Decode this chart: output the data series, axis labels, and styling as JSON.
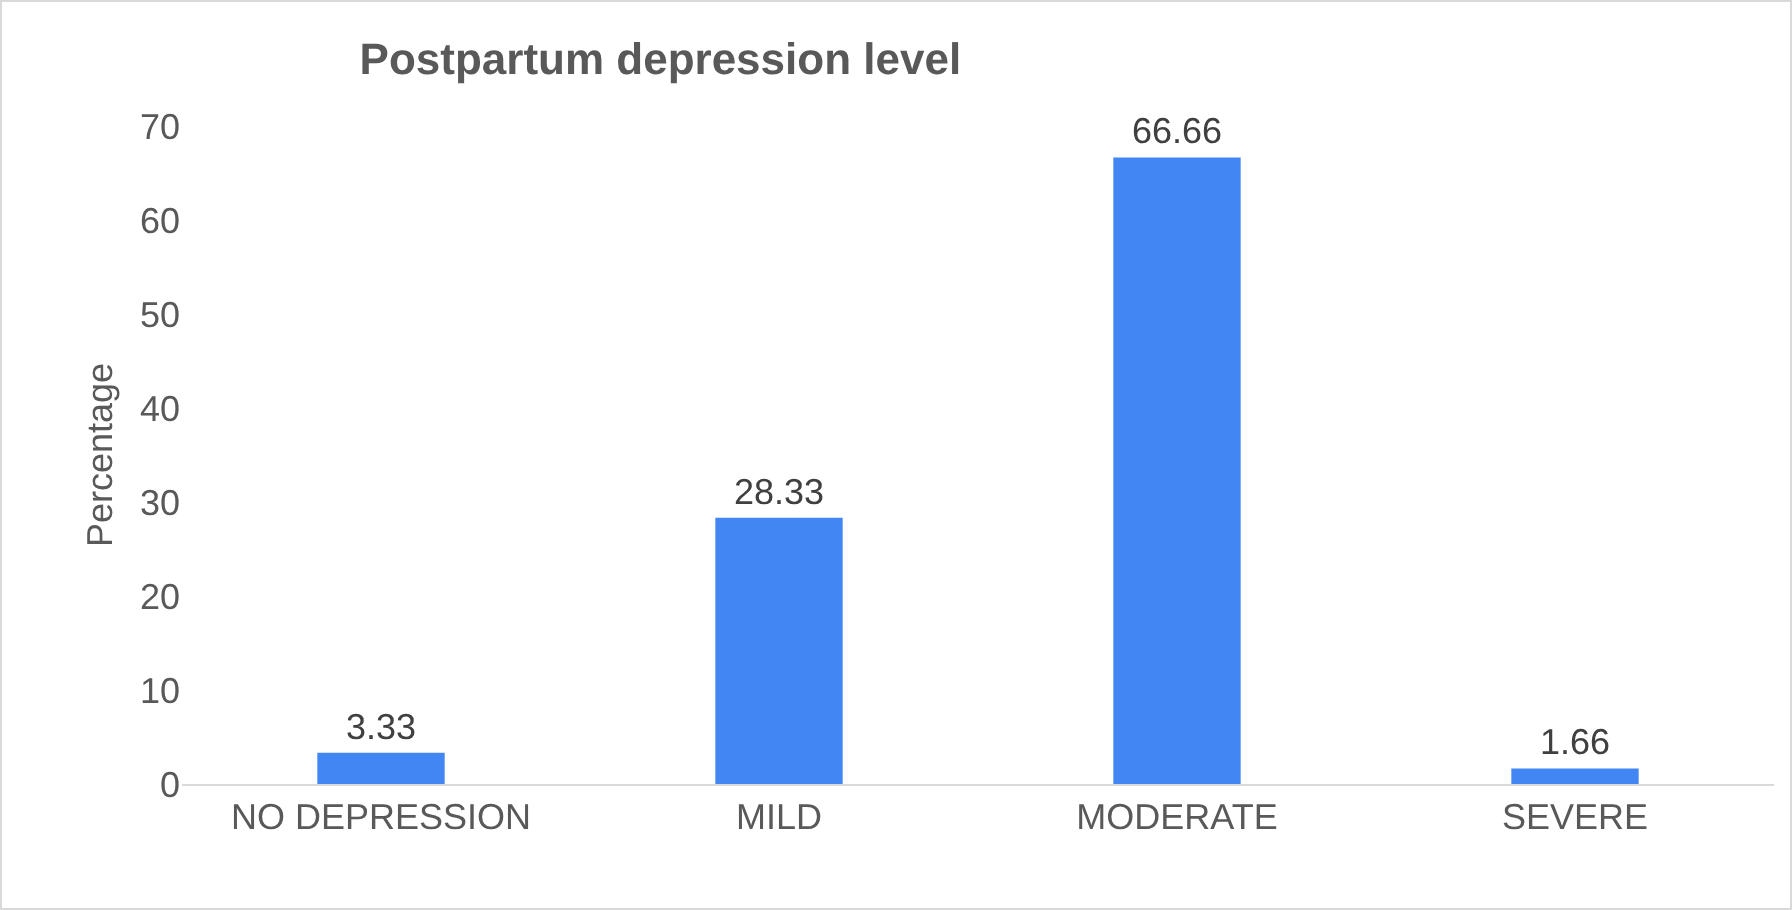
{
  "chart_data": {
    "type": "bar",
    "title": "Postpartum depression level",
    "ylabel": "Percentage",
    "categories": [
      "NO DEPRESSION",
      "MILD",
      "MODERATE",
      "SEVERE"
    ],
    "values": [
      3.33,
      28.33,
      66.66,
      1.66
    ],
    "color": "#4286f4",
    "ylim": [
      0,
      70
    ],
    "yticks": [
      0,
      10,
      20,
      30,
      40,
      50,
      60,
      70
    ],
    "grid": false,
    "legend": false,
    "data_labels": true
  }
}
